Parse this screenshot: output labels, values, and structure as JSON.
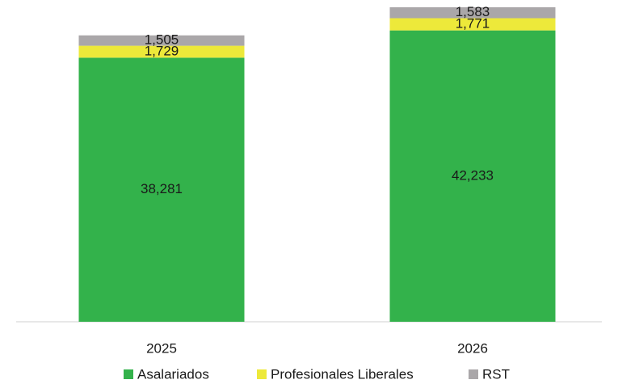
{
  "chart_data": {
    "type": "stacked_bar",
    "categories": [
      "2025",
      "2026"
    ],
    "series": [
      {
        "name": "Asalariados",
        "color": "#33b24b",
        "values": [
          38281,
          42233
        ],
        "value_labels": [
          "38,281",
          "42,233"
        ]
      },
      {
        "name": "Profesionales Liberales",
        "color": "#ede93a",
        "values": [
          1729,
          1771
        ],
        "value_labels": [
          "1,729",
          "1,771"
        ]
      },
      {
        "name": "RST",
        "color": "#aaa7a9",
        "values": [
          1505,
          1583
        ],
        "value_labels": [
          "1,505",
          "1,583"
        ]
      }
    ]
  }
}
